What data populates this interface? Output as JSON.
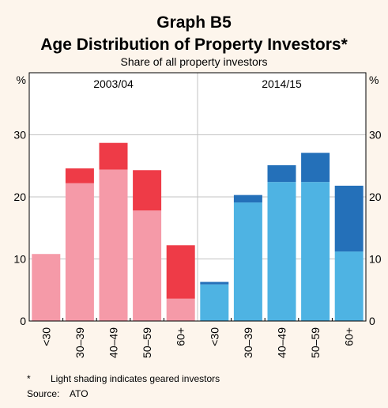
{
  "title_line1": "Graph B5",
  "title_line2": "Age Distribution of Property Investors*",
  "subtitle": "Share of all property investors",
  "footnote_mark": "*",
  "footnote_text": "Light shading indicates geared investors",
  "source_label": "Source:",
  "source_text": "ATO",
  "colors": {
    "panel1_light": "#f59aa8",
    "panel1_dark": "#ee3b47",
    "panel2_light": "#4eb3e3",
    "panel2_dark": "#2470b9",
    "grid": "#c3c3c3",
    "background": "#fdf5ec",
    "plot_background": "#ffffff"
  },
  "chart_data": {
    "type": "bar",
    "stacked": true,
    "y_unit_left": "%",
    "y_unit_right": "%",
    "ylim": [
      0,
      40
    ],
    "yticks": [
      0,
      10,
      20,
      30
    ],
    "grid": true,
    "panels": [
      {
        "label": "2003/04",
        "categories": [
          "<30",
          "30–39",
          "40–49",
          "50–59",
          "60+"
        ],
        "geared": [
          10.8,
          22.2,
          24.4,
          17.8,
          3.6
        ],
        "total": [
          10.8,
          24.6,
          28.7,
          24.3,
          12.2
        ]
      },
      {
        "label": "2014/15",
        "categories": [
          "<30",
          "30–39",
          "40–49",
          "50–59",
          "60+"
        ],
        "geared": [
          5.9,
          19.1,
          22.4,
          22.4,
          11.2
        ],
        "total": [
          6.3,
          20.3,
          25.1,
          27.1,
          21.8
        ]
      }
    ]
  }
}
